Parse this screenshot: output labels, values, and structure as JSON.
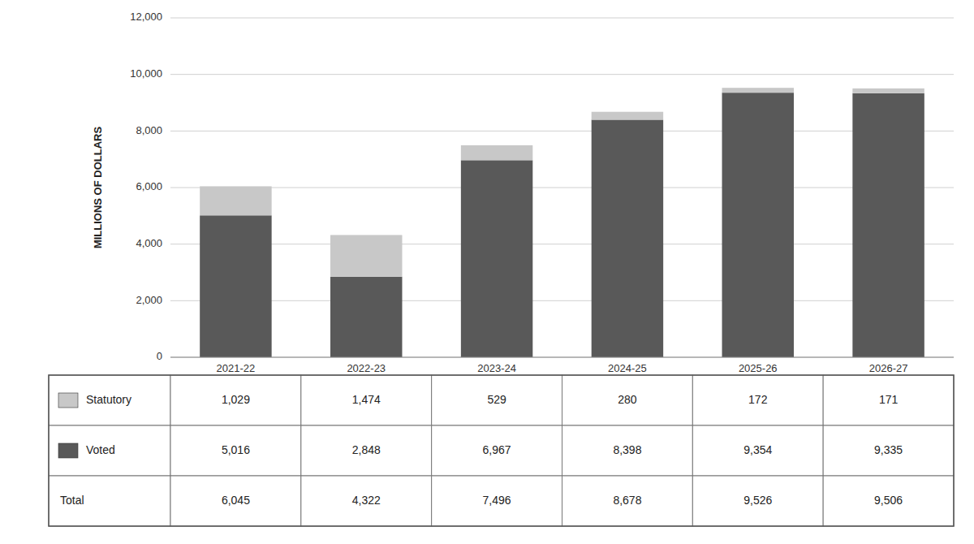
{
  "chart_data": {
    "type": "bar",
    "stacked": true,
    "grid": true,
    "ylabel": "MILLIONS OF DOLLARS",
    "categories": [
      "2021-22",
      "2022-23",
      "2023-24",
      "2024-25",
      "2025-26",
      "2026-27"
    ],
    "series": [
      {
        "name": "Voted",
        "color": "#595959",
        "values": [
          5016,
          2848,
          6967,
          8398,
          9354,
          9335
        ],
        "value_labels": [
          "5,016",
          "2,848",
          "6,967",
          "8,398",
          "9,354",
          "9,335"
        ]
      },
      {
        "name": "Statutory",
        "color": "#c8c8c8",
        "values": [
          1029,
          1474,
          529,
          280,
          172,
          171
        ],
        "value_labels": [
          "1,029",
          "1,474",
          "529",
          "280",
          "172",
          "171"
        ]
      }
    ],
    "totals": {
      "name": "Total",
      "values": [
        6045,
        4322,
        7496,
        8678,
        9526,
        9506
      ],
      "value_labels": [
        "6,045",
        "4,322",
        "7,496",
        "8,678",
        "9,526",
        "9,506"
      ]
    },
    "ylim": [
      0,
      12000
    ],
    "yticks": [
      0,
      {
        "value": 2000,
        "label": "2,000"
      },
      {
        "value": 4000,
        "label": "4,000"
      },
      {
        "value": 6000,
        "label": "6,000"
      },
      {
        "value": 8000,
        "label": "8,000"
      },
      {
        "value": 10000,
        "label": "10,000"
      },
      {
        "value": 12000,
        "label": "12,000"
      }
    ]
  }
}
